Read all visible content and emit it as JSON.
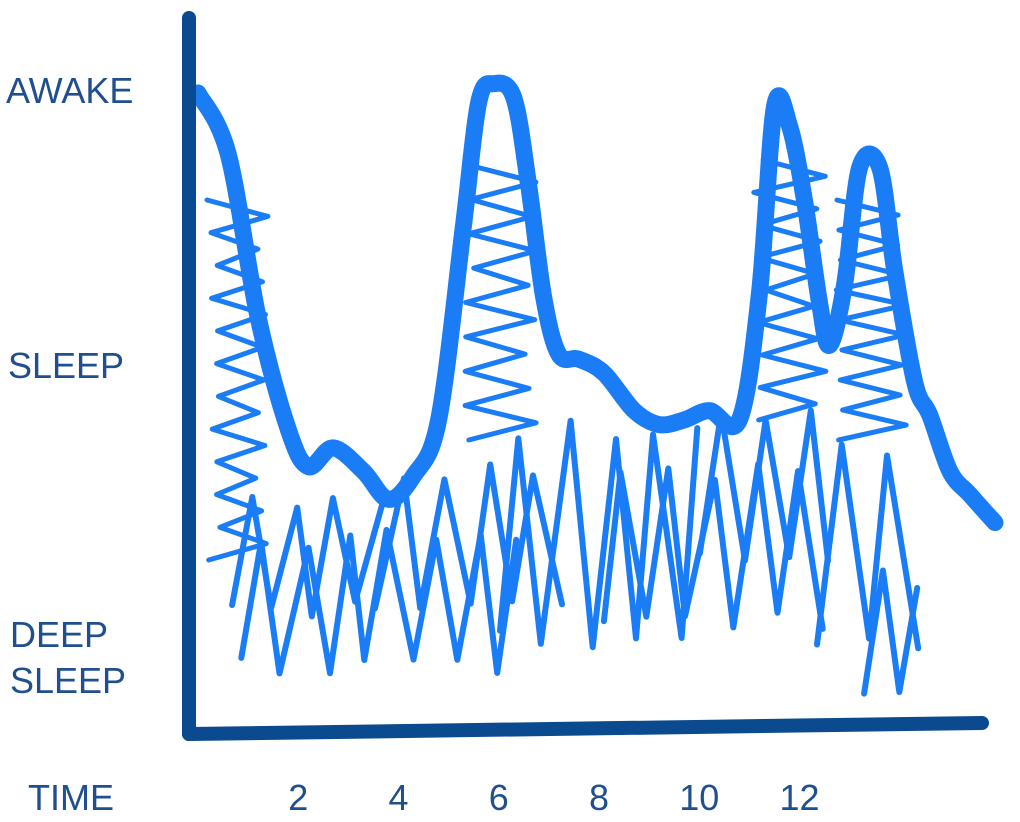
{
  "chart_data": {
    "type": "line",
    "title": "",
    "xlabel": "TIME",
    "ylabel": "",
    "x_ticks": [
      "2",
      "4",
      "6",
      "8",
      "10",
      "12"
    ],
    "y_levels": [
      "AWAKE",
      "SLEEP",
      "DEEP\nSLEEP"
    ],
    "xlim": [
      0,
      16
    ],
    "ylim": [
      0,
      1
    ],
    "grid": false,
    "series": [
      {
        "name": "",
        "style": "hand-drawn-thick",
        "x": [
          0.0,
          0.6,
          1.2,
          1.8,
          2.2,
          2.7,
          3.3,
          3.8,
          4.3,
          4.8,
          5.3,
          5.6,
          5.9,
          6.3,
          6.6,
          6.9,
          7.2,
          7.6,
          8.1,
          8.7,
          9.2,
          9.7,
          10.2,
          10.8,
          11.2,
          11.5,
          11.8,
          12.1,
          12.4,
          12.6,
          12.9,
          13.2,
          13.6,
          13.9,
          14.3,
          14.6,
          15.0,
          15.4,
          15.9
        ],
        "y": [
          1.0,
          0.87,
          0.52,
          0.28,
          0.2,
          0.24,
          0.19,
          0.13,
          0.18,
          0.3,
          0.72,
          0.98,
          1.02,
          0.99,
          0.8,
          0.56,
          0.44,
          0.43,
          0.4,
          0.32,
          0.29,
          0.3,
          0.32,
          0.3,
          0.57,
          0.97,
          0.93,
          0.77,
          0.55,
          0.46,
          0.59,
          0.84,
          0.84,
          0.62,
          0.38,
          0.31,
          0.19,
          0.14,
          0.08
        ]
      }
    ],
    "colors": {
      "axis": "#0b4a8e",
      "line": "#1a7df5",
      "labels": "#1f4f8f"
    }
  }
}
